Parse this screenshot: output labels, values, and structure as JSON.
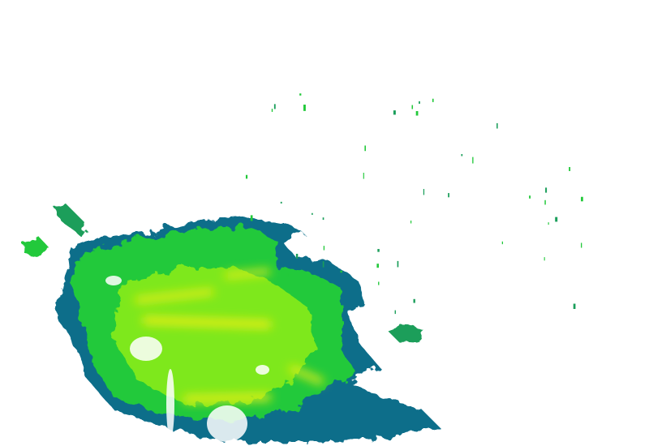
{
  "layer": {
    "type": "precipitation-radar-overlay",
    "colors": {
      "background": "#ffffff",
      "light": "#1a9e5a",
      "edge": "#0b6e8a",
      "moderate": "#22c93a",
      "heavy": "#7ee81c",
      "intense": "#e6ee12",
      "core": "#f5e40a"
    }
  }
}
